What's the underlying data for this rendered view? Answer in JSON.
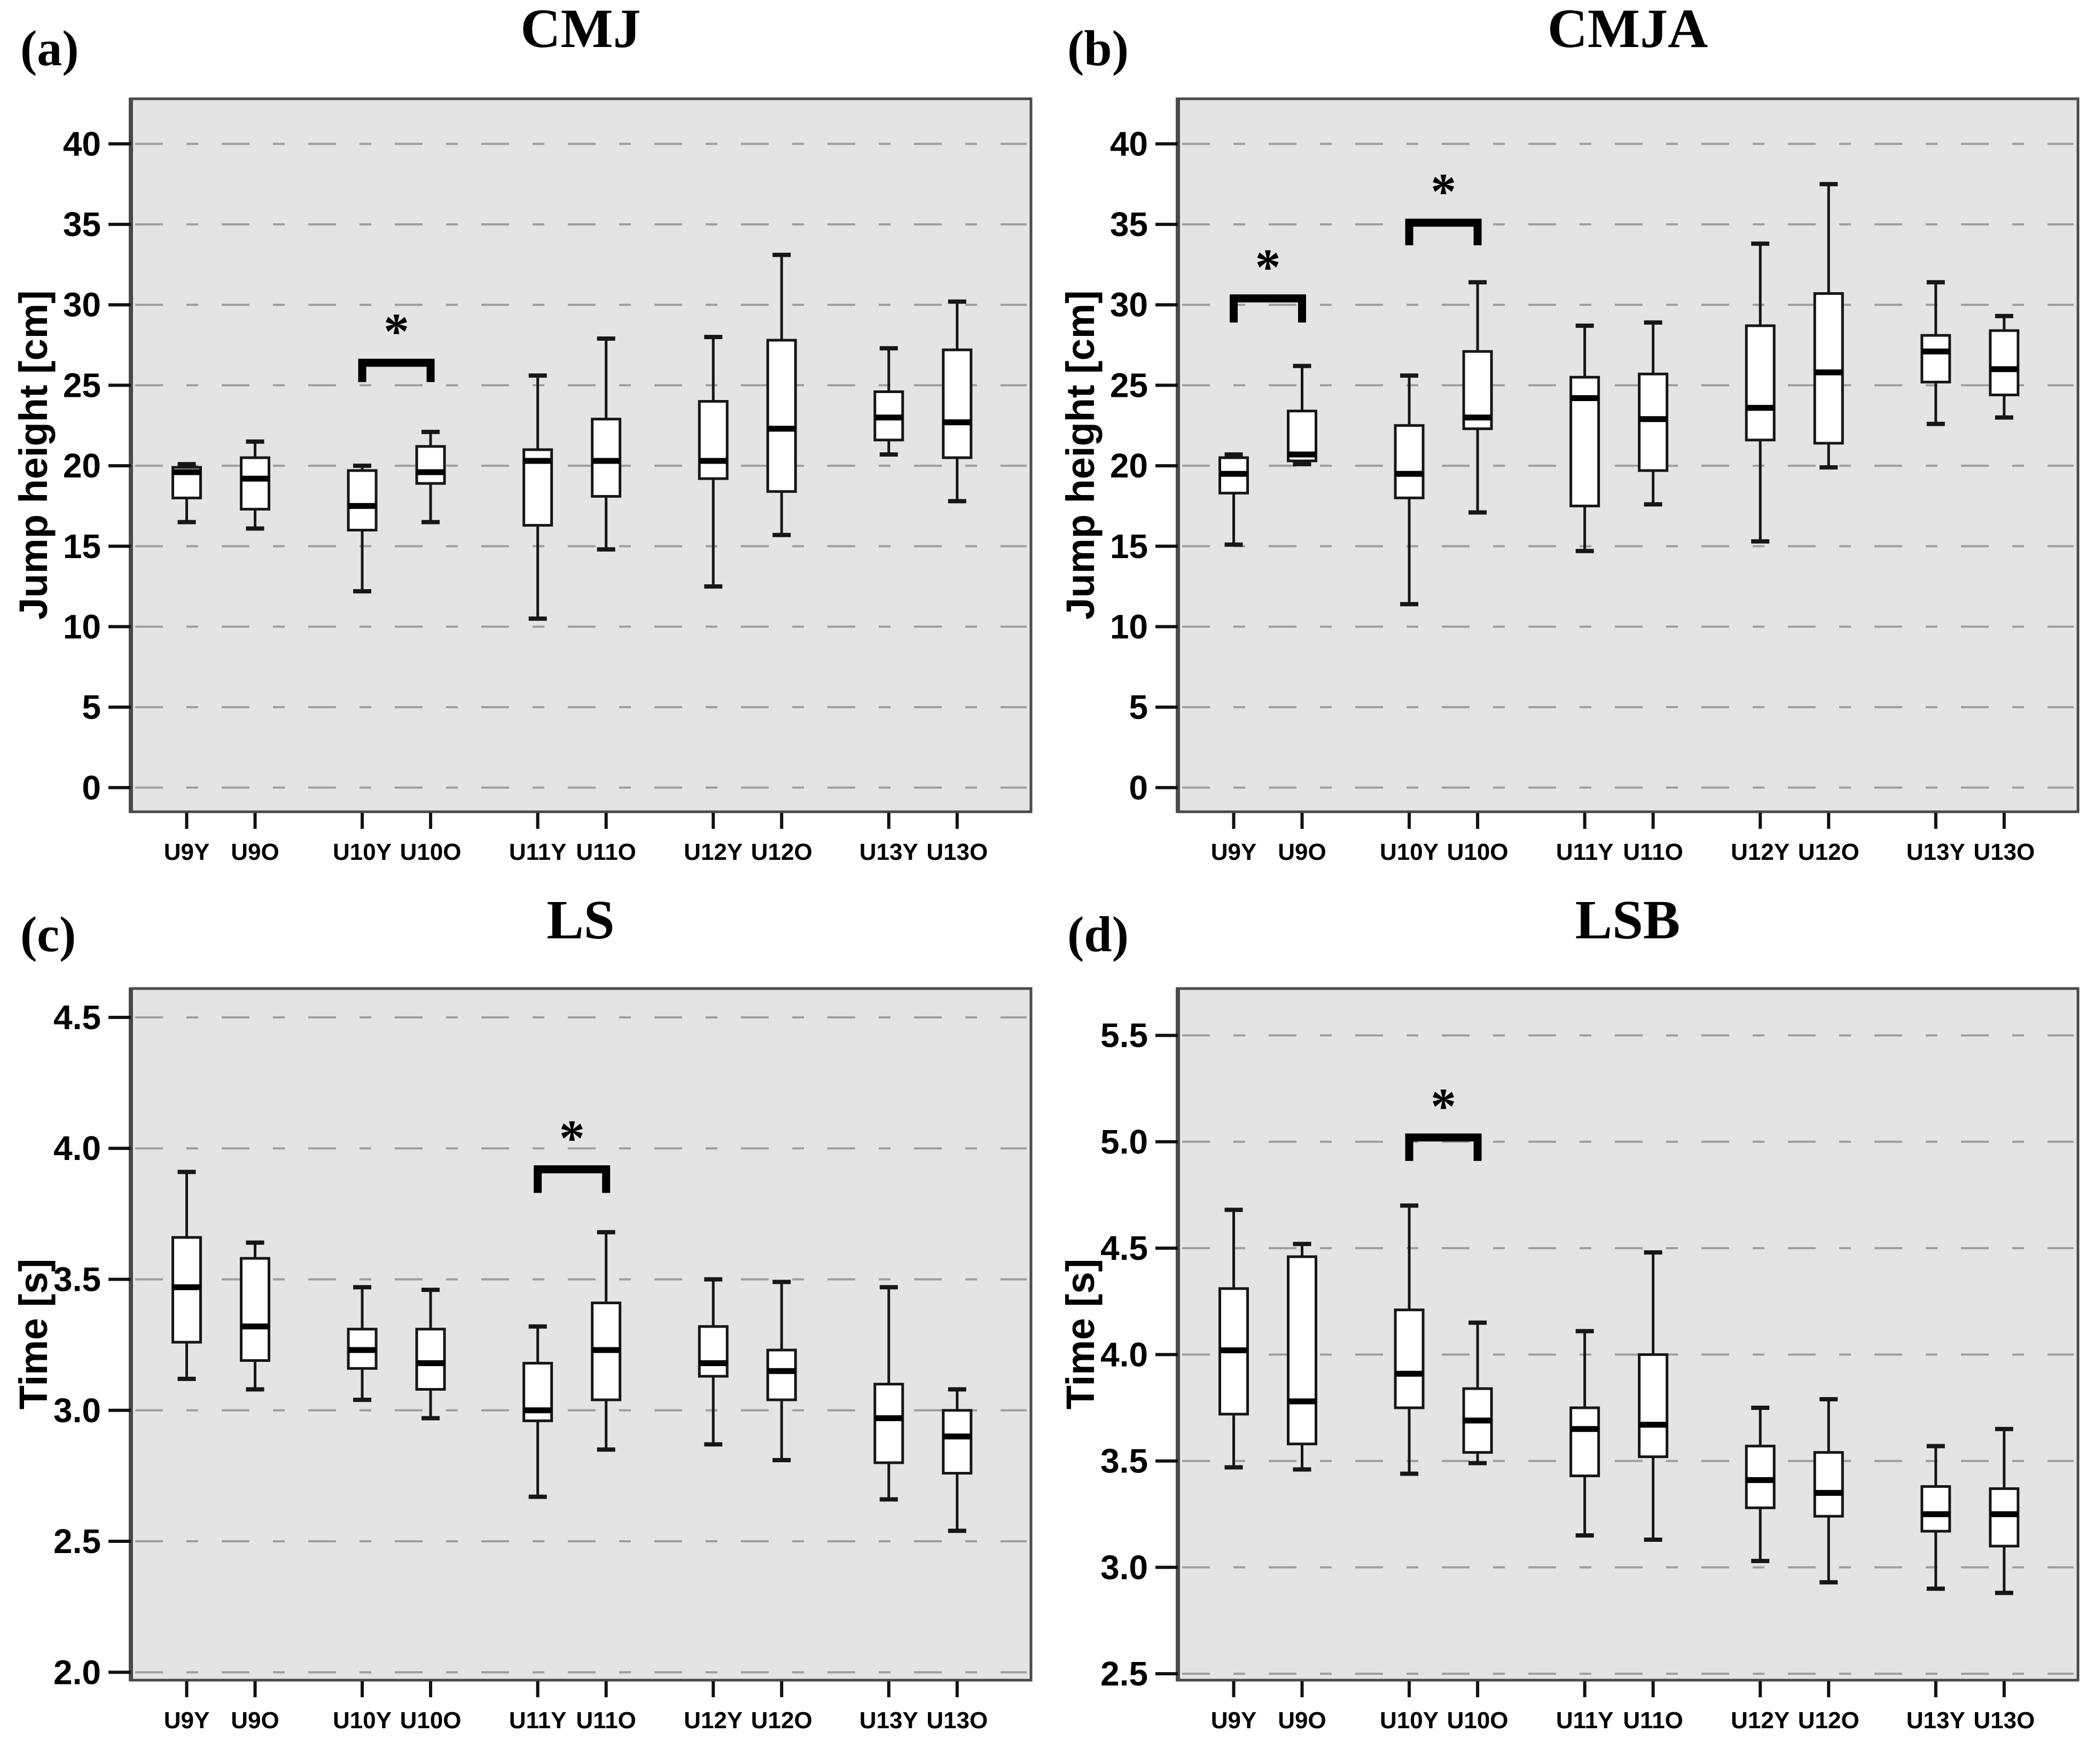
{
  "colors": {
    "plot_background": "#e4e4e4",
    "gridline": "#9e9e9e",
    "plot_border": "#4a4a4a",
    "box_fill": "#ffffff",
    "box_line": "#161616",
    "median_line": "#000000",
    "tick_line": "#111111",
    "text": "#000000"
  },
  "chart_data": [
    {
      "type": "box",
      "panel_id": "a",
      "panel_label": "(a)",
      "title": "CMJ",
      "ylabel": "Jump height [cm]",
      "xlabel": "",
      "ylim": [
        -1.5,
        42.8
      ],
      "yticks": [
        0,
        5,
        10,
        15,
        20,
        25,
        30,
        35,
        40
      ],
      "ytick_labels": [
        "0",
        "5",
        "10",
        "15",
        "20",
        "25",
        "30",
        "35",
        "40"
      ],
      "grid": "horizontal dashed",
      "legend": "none",
      "categories": [
        "U9Y",
        "U9O",
        "U10Y",
        "U10O",
        "U11Y",
        "U11O",
        "U12Y",
        "U12O",
        "U13Y",
        "U13O"
      ],
      "boxes": [
        {
          "label": "U9Y",
          "whisker_low": 16.5,
          "q1": 18.0,
          "median": 19.6,
          "q3": 19.9,
          "whisker_high": 20.1
        },
        {
          "label": "U9O",
          "whisker_low": 16.1,
          "q1": 17.3,
          "median": 19.2,
          "q3": 20.5,
          "whisker_high": 21.5
        },
        {
          "label": "U10Y",
          "whisker_low": 12.2,
          "q1": 16.0,
          "median": 17.5,
          "q3": 19.7,
          "whisker_high": 20.0
        },
        {
          "label": "U10O",
          "whisker_low": 16.5,
          "q1": 18.9,
          "median": 19.6,
          "q3": 21.2,
          "whisker_high": 22.1
        },
        {
          "label": "U11Y",
          "whisker_low": 10.5,
          "q1": 16.3,
          "median": 20.3,
          "q3": 21.0,
          "whisker_high": 25.6
        },
        {
          "label": "U11O",
          "whisker_low": 14.8,
          "q1": 18.1,
          "median": 20.3,
          "q3": 22.9,
          "whisker_high": 27.9
        },
        {
          "label": "U12Y",
          "whisker_low": 12.5,
          "q1": 19.2,
          "median": 20.3,
          "q3": 24.0,
          "whisker_high": 28.0
        },
        {
          "label": "U12O",
          "whisker_low": 15.7,
          "q1": 18.4,
          "median": 22.3,
          "q3": 27.8,
          "whisker_high": 33.1
        },
        {
          "label": "U13Y",
          "whisker_low": 20.7,
          "q1": 21.6,
          "median": 23.0,
          "q3": 24.6,
          "whisker_high": 27.3
        },
        {
          "label": "U13O",
          "whisker_low": 17.8,
          "q1": 20.5,
          "median": 22.7,
          "q3": 27.2,
          "whisker_high": 30.2
        }
      ],
      "significance": [
        {
          "from": "U10Y",
          "to": "U10O",
          "bar_y": 26.4,
          "leg_y": 25.2,
          "label": "*"
        }
      ]
    },
    {
      "type": "box",
      "panel_id": "b",
      "panel_label": "(b)",
      "title": "CMJA",
      "ylabel": "Jump height [cm]",
      "xlabel": "",
      "ylim": [
        -1.5,
        42.8
      ],
      "yticks": [
        0,
        5,
        10,
        15,
        20,
        25,
        30,
        35,
        40
      ],
      "ytick_labels": [
        "0",
        "5",
        "10",
        "15",
        "20",
        "25",
        "30",
        "35",
        "40"
      ],
      "grid": "horizontal dashed",
      "legend": "none",
      "categories": [
        "U9Y",
        "U9O",
        "U10Y",
        "U10O",
        "U11Y",
        "U11O",
        "U12Y",
        "U12O",
        "U13Y",
        "U13O"
      ],
      "boxes": [
        {
          "label": "U9Y",
          "whisker_low": 15.1,
          "q1": 18.3,
          "median": 19.5,
          "q3": 20.5,
          "whisker_high": 20.7
        },
        {
          "label": "U9O",
          "whisker_low": 20.1,
          "q1": 20.3,
          "median": 20.7,
          "q3": 23.4,
          "whisker_high": 26.2
        },
        {
          "label": "U10Y",
          "whisker_low": 11.4,
          "q1": 18.0,
          "median": 19.5,
          "q3": 22.5,
          "whisker_high": 25.6
        },
        {
          "label": "U10O",
          "whisker_low": 17.1,
          "q1": 22.3,
          "median": 23.0,
          "q3": 27.1,
          "whisker_high": 31.4
        },
        {
          "label": "U11Y",
          "whisker_low": 14.7,
          "q1": 17.5,
          "median": 24.2,
          "q3": 25.5,
          "whisker_high": 28.7
        },
        {
          "label": "U11O",
          "whisker_low": 17.6,
          "q1": 19.7,
          "median": 22.9,
          "q3": 25.7,
          "whisker_high": 28.9
        },
        {
          "label": "U12Y",
          "whisker_low": 15.3,
          "q1": 21.6,
          "median": 23.6,
          "q3": 28.7,
          "whisker_high": 33.8
        },
        {
          "label": "U12O",
          "whisker_low": 19.9,
          "q1": 21.4,
          "median": 25.8,
          "q3": 30.7,
          "whisker_high": 37.5
        },
        {
          "label": "U13Y",
          "whisker_low": 22.6,
          "q1": 25.2,
          "median": 27.1,
          "q3": 28.1,
          "whisker_high": 31.4
        },
        {
          "label": "U13O",
          "whisker_low": 23.0,
          "q1": 24.4,
          "median": 26.0,
          "q3": 28.4,
          "whisker_high": 29.3
        }
      ],
      "significance": [
        {
          "from": "U9Y",
          "to": "U9O",
          "bar_y": 30.4,
          "leg_y": 28.9,
          "label": "*"
        },
        {
          "from": "U10Y",
          "to": "U10O",
          "bar_y": 35.1,
          "leg_y": 33.7,
          "label": "*"
        }
      ]
    },
    {
      "type": "box",
      "panel_id": "c",
      "panel_label": "(c)",
      "title": "LS",
      "ylabel": "Time [s]",
      "xlabel": "",
      "ylim": [
        1.97,
        4.61
      ],
      "yticks": [
        2.0,
        2.5,
        3.0,
        3.5,
        4.0,
        4.5
      ],
      "ytick_labels": [
        "2.0",
        "2.5",
        "3.0",
        "3.5",
        "4.0",
        "4.5"
      ],
      "grid": "horizontal dashed",
      "legend": "none",
      "categories": [
        "U9Y",
        "U9O",
        "U10Y",
        "U10O",
        "U11Y",
        "U11O",
        "U12Y",
        "U12O",
        "U13Y",
        "U13O"
      ],
      "boxes": [
        {
          "label": "U9Y",
          "whisker_low": 3.12,
          "q1": 3.26,
          "median": 3.47,
          "q3": 3.66,
          "whisker_high": 3.91
        },
        {
          "label": "U9O",
          "whisker_low": 3.08,
          "q1": 3.19,
          "median": 3.32,
          "q3": 3.58,
          "whisker_high": 3.64
        },
        {
          "label": "U10Y",
          "whisker_low": 3.04,
          "q1": 3.16,
          "median": 3.23,
          "q3": 3.31,
          "whisker_high": 3.47
        },
        {
          "label": "U10O",
          "whisker_low": 2.97,
          "q1": 3.08,
          "median": 3.18,
          "q3": 3.31,
          "whisker_high": 3.46
        },
        {
          "label": "U11Y",
          "whisker_low": 2.67,
          "q1": 2.96,
          "median": 3.0,
          "q3": 3.18,
          "whisker_high": 3.32
        },
        {
          "label": "U11O",
          "whisker_low": 2.85,
          "q1": 3.04,
          "median": 3.23,
          "q3": 3.41,
          "whisker_high": 3.68
        },
        {
          "label": "U12Y",
          "whisker_low": 2.87,
          "q1": 3.13,
          "median": 3.18,
          "q3": 3.32,
          "whisker_high": 3.5
        },
        {
          "label": "U12O",
          "whisker_low": 2.81,
          "q1": 3.04,
          "median": 3.15,
          "q3": 3.23,
          "whisker_high": 3.49
        },
        {
          "label": "U13Y",
          "whisker_low": 2.66,
          "q1": 2.8,
          "median": 2.97,
          "q3": 3.1,
          "whisker_high": 3.47
        },
        {
          "label": "U13O",
          "whisker_low": 2.54,
          "q1": 2.76,
          "median": 2.9,
          "q3": 3.0,
          "whisker_high": 3.08
        }
      ],
      "significance": [
        {
          "from": "U11Y",
          "to": "U11O",
          "bar_y": 3.92,
          "leg_y": 3.83,
          "label": "*"
        }
      ]
    },
    {
      "type": "box",
      "panel_id": "d",
      "panel_label": "(d)",
      "title": "LSB",
      "ylabel": "Time [s]",
      "xlabel": "",
      "ylim": [
        2.47,
        5.72
      ],
      "yticks": [
        2.5,
        3.0,
        3.5,
        4.0,
        4.5,
        5.0,
        5.5
      ],
      "ytick_labels": [
        "2.5",
        "3.0",
        "3.5",
        "4.0",
        "4.5",
        "5.0",
        "5.5"
      ],
      "grid": "horizontal dashed",
      "legend": "none",
      "categories": [
        "U9Y",
        "U9O",
        "U10Y",
        "U10O",
        "U11Y",
        "U11O",
        "U12Y",
        "U12O",
        "U13Y",
        "U13O"
      ],
      "boxes": [
        {
          "label": "U9Y",
          "whisker_low": 3.47,
          "q1": 3.72,
          "median": 4.02,
          "q3": 4.31,
          "whisker_high": 4.68
        },
        {
          "label": "U9O",
          "whisker_low": 3.46,
          "q1": 3.58,
          "median": 3.78,
          "q3": 4.46,
          "whisker_high": 4.52
        },
        {
          "label": "U10Y",
          "whisker_low": 3.44,
          "q1": 3.75,
          "median": 3.91,
          "q3": 4.21,
          "whisker_high": 4.7
        },
        {
          "label": "U10O",
          "whisker_low": 3.49,
          "q1": 3.54,
          "median": 3.69,
          "q3": 3.84,
          "whisker_high": 4.15
        },
        {
          "label": "U11Y",
          "whisker_low": 3.15,
          "q1": 3.43,
          "median": 3.65,
          "q3": 3.75,
          "whisker_high": 4.11
        },
        {
          "label": "U11O",
          "whisker_low": 3.13,
          "q1": 3.52,
          "median": 3.67,
          "q3": 4.0,
          "whisker_high": 4.48
        },
        {
          "label": "U12Y",
          "whisker_low": 3.03,
          "q1": 3.28,
          "median": 3.41,
          "q3": 3.57,
          "whisker_high": 3.75
        },
        {
          "label": "U12O",
          "whisker_low": 2.93,
          "q1": 3.24,
          "median": 3.35,
          "q3": 3.54,
          "whisker_high": 3.79
        },
        {
          "label": "U13Y",
          "whisker_low": 2.9,
          "q1": 3.17,
          "median": 3.25,
          "q3": 3.38,
          "whisker_high": 3.57
        },
        {
          "label": "U13O",
          "whisker_low": 2.88,
          "q1": 3.1,
          "median": 3.25,
          "q3": 3.37,
          "whisker_high": 3.65
        }
      ],
      "significance": [
        {
          "from": "U10Y",
          "to": "U10O",
          "bar_y": 5.02,
          "leg_y": 4.91,
          "label": "*"
        }
      ]
    }
  ]
}
